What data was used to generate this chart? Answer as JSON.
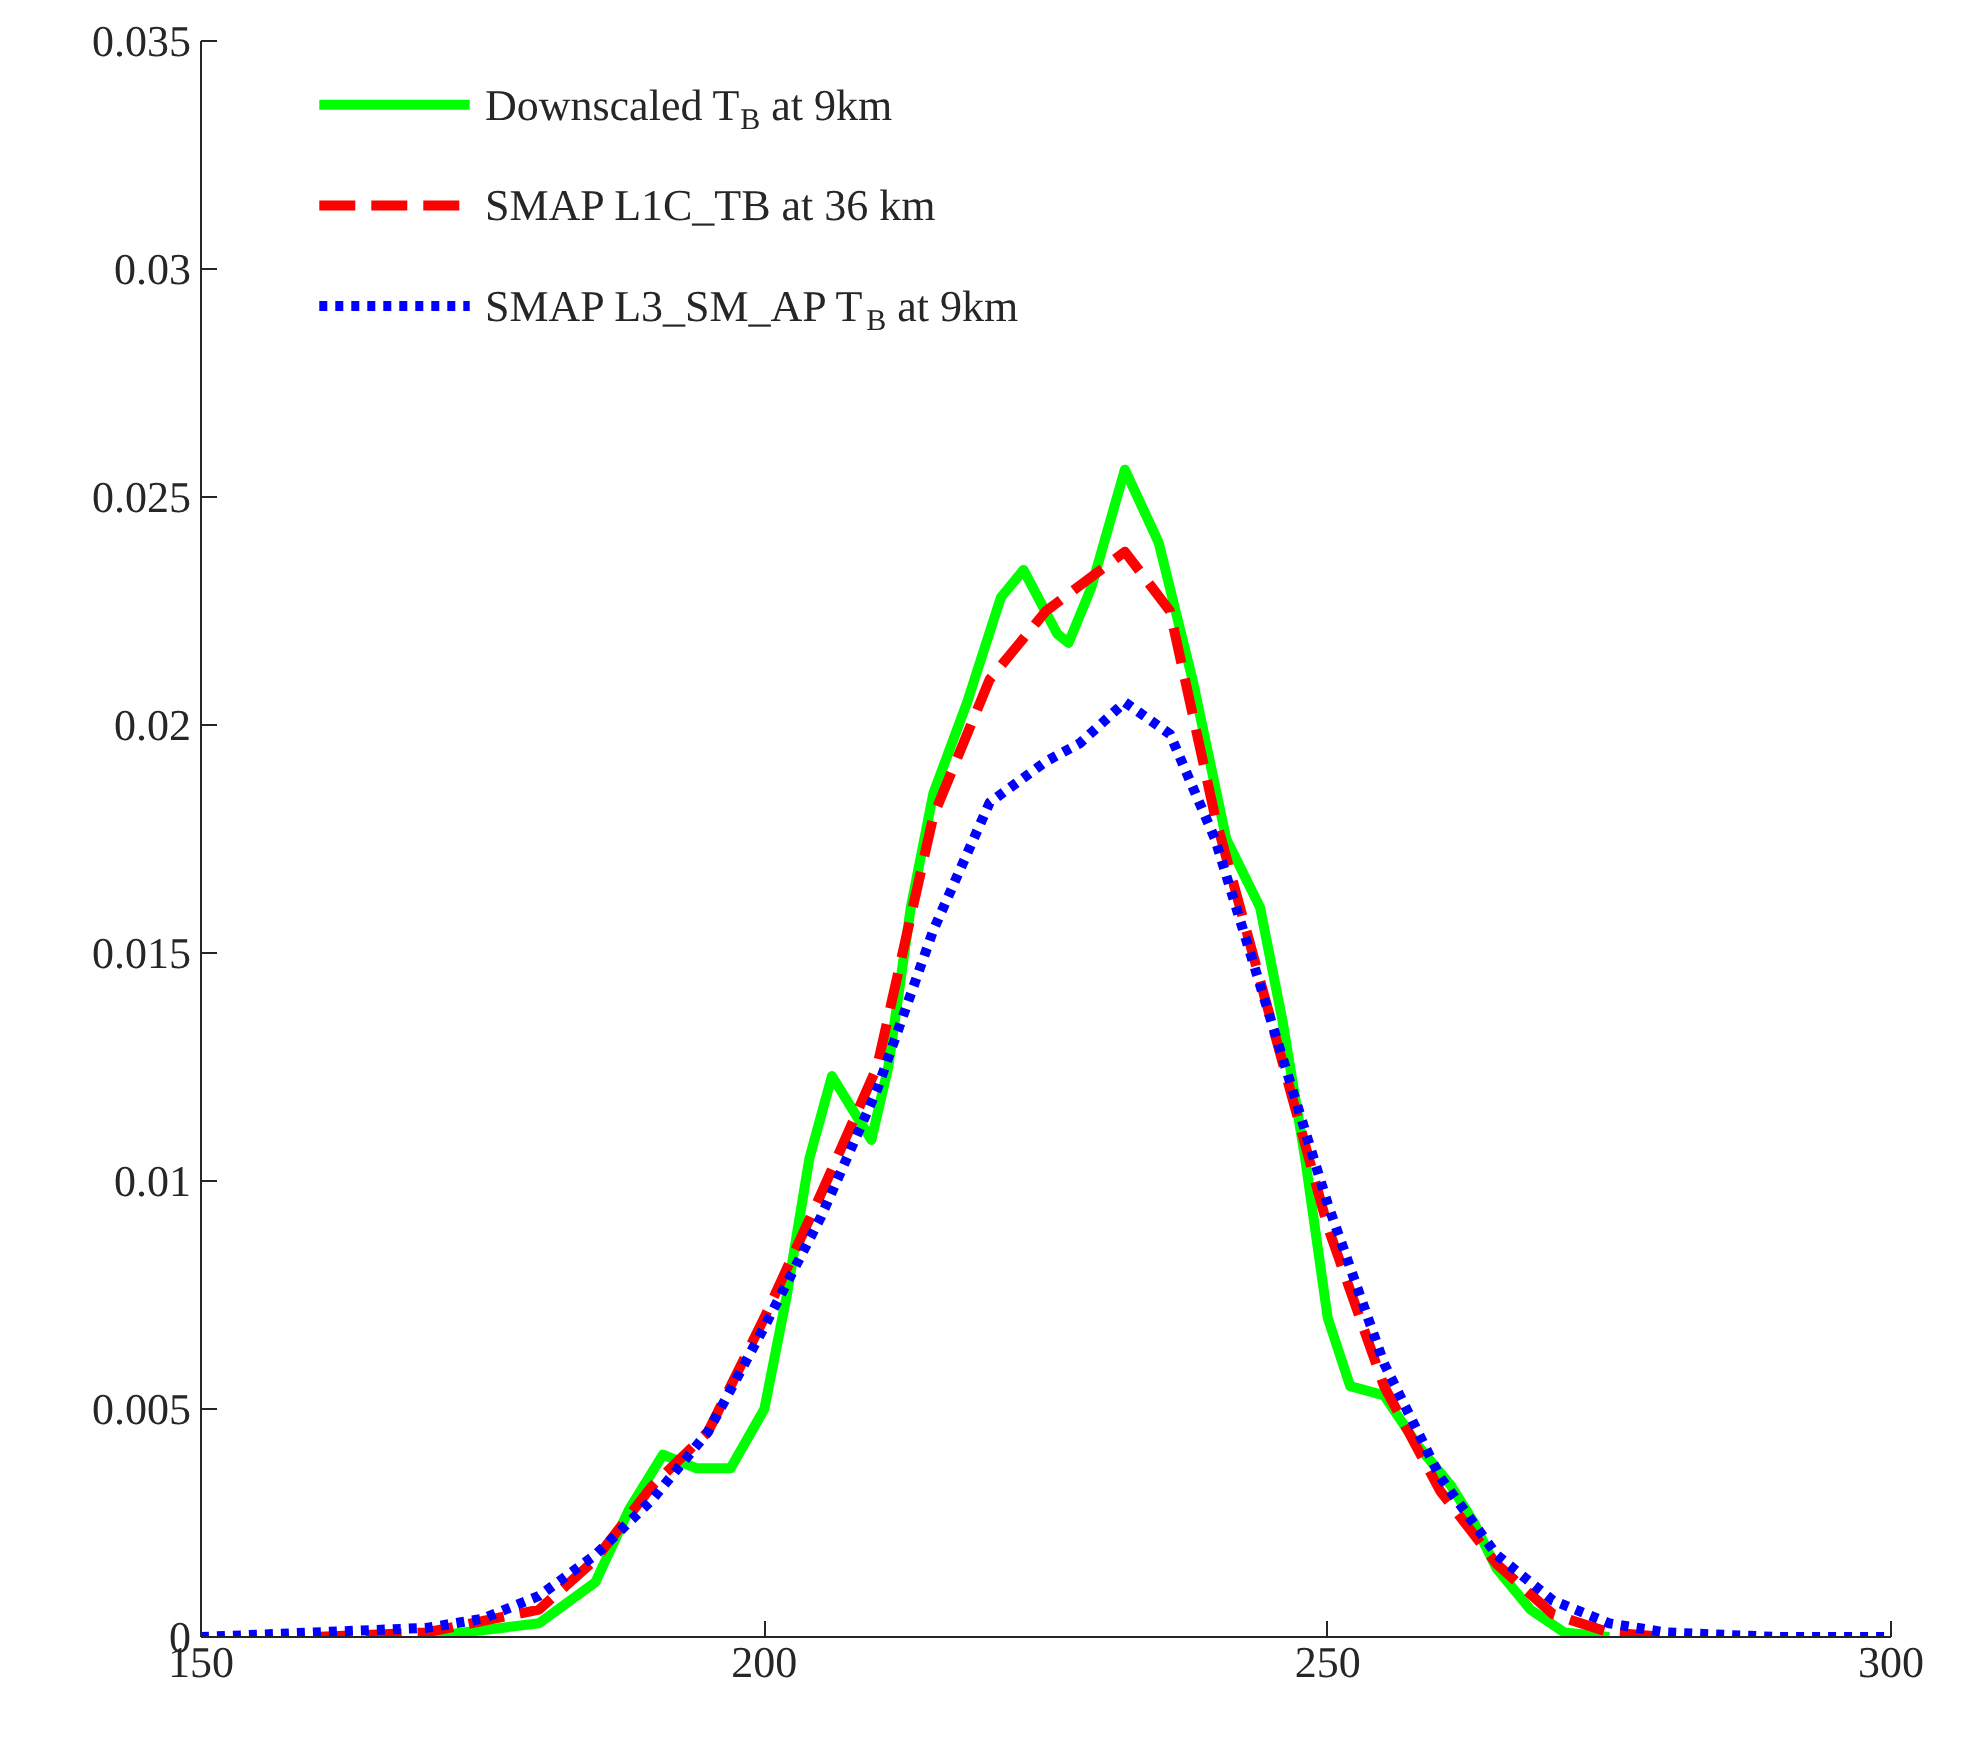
{
  "chart_data": {
    "type": "line",
    "xlim": [
      150,
      300
    ],
    "xticks": [
      150,
      200,
      250,
      300
    ],
    "ylim": [
      0,
      0.035
    ],
    "yticks": [
      0,
      0.005,
      0.01,
      0.015,
      0.02,
      0.025,
      0.03,
      0.035
    ],
    "grid": false,
    "legend": "top left",
    "series": [
      {
        "name": "Downscaled T$_{B}$ at 9km",
        "color": "#00ff00",
        "line_style": "solid",
        "x": [
          170,
          180,
          185,
          188,
          191,
          194,
          197,
          200,
          202,
          204,
          206,
          208,
          209.5,
          211,
          213,
          215,
          218,
          221,
          223,
          226,
          227,
          229,
          232,
          235,
          238,
          241,
          244,
          246,
          248,
          250,
          252,
          255,
          258,
          261,
          263,
          265,
          268,
          271,
          275
        ],
        "values": [
          0,
          0.0003,
          0.0012,
          0.0028,
          0.004,
          0.0037,
          0.0037,
          0.005,
          0.0075,
          0.0105,
          0.0123,
          0.0115,
          0.0109,
          0.0125,
          0.016,
          0.0185,
          0.0205,
          0.0228,
          0.0234,
          0.022,
          0.0218,
          0.023,
          0.0256,
          0.024,
          0.021,
          0.0175,
          0.016,
          0.0135,
          0.0105,
          0.007,
          0.0055,
          0.0053,
          0.0042,
          0.0033,
          0.0025,
          0.0015,
          0.0006,
          0.0001,
          0
        ]
      },
      {
        "name": "SMAP L1C_TB at 36 km",
        "color": "#ff0000",
        "line_style": "dashed",
        "x": [
          160,
          170,
          180,
          185,
          190,
          195,
          200,
          205,
          210,
          215,
          220,
          225,
          232,
          236,
          240,
          245,
          250,
          255,
          260,
          265,
          270,
          275,
          280
        ],
        "values": [
          0,
          0.0001,
          0.0006,
          0.0017,
          0.0033,
          0.0045,
          0.007,
          0.0097,
          0.0125,
          0.018,
          0.021,
          0.0225,
          0.0238,
          0.0225,
          0.018,
          0.0135,
          0.009,
          0.0055,
          0.0032,
          0.0016,
          0.0005,
          0.0001,
          0
        ]
      },
      {
        "name": "SMAP L3_SM_AP T$_{B}$ at 9km",
        "color": "#0000ff",
        "line_style": "dotted",
        "x": [
          150,
          160,
          170,
          175,
          180,
          185,
          190,
          195,
          200,
          205,
          210,
          215,
          220,
          225,
          228,
          232,
          236,
          240,
          245,
          250,
          255,
          260,
          265,
          270,
          275,
          280,
          290,
          300
        ],
        "values": [
          0,
          0.0001,
          0.0002,
          0.0004,
          0.0009,
          0.0018,
          0.003,
          0.0045,
          0.0068,
          0.0092,
          0.012,
          0.0155,
          0.0183,
          0.0192,
          0.0196,
          0.0205,
          0.0198,
          0.0175,
          0.0135,
          0.0095,
          0.006,
          0.0035,
          0.0018,
          0.0008,
          0.0003,
          0.0001,
          0,
          0
        ]
      }
    ]
  }
}
